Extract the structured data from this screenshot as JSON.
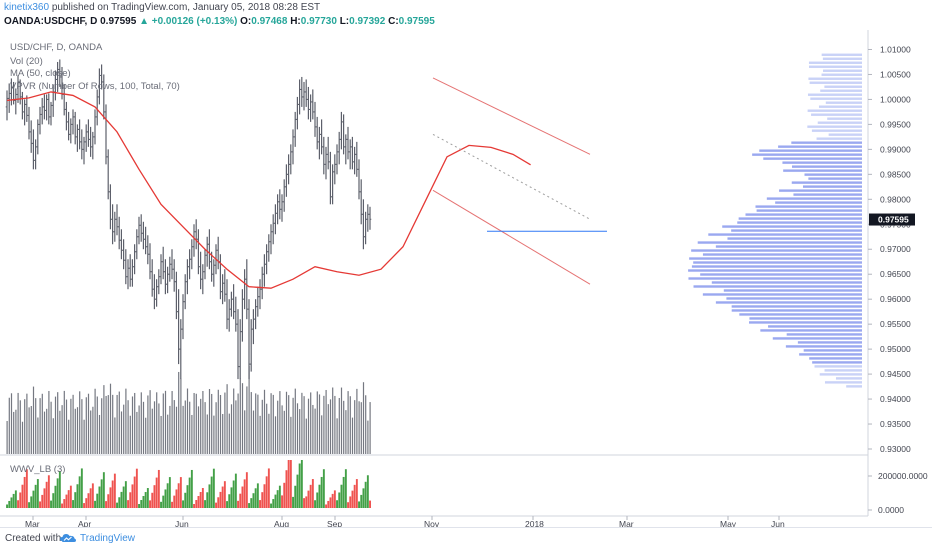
{
  "header": {
    "author": "kinetix360",
    "published_text": "published on TradingView.com, January 05, 2018 08:28 EST",
    "symbol": "OANDA:USDCHF, D",
    "last_price": "0.97595",
    "change": "+0.00126 (+0.13%)",
    "open_label": "O:",
    "open": "0.97468",
    "high_label": "H:",
    "high": "0.97730",
    "low_label": "L:",
    "low": "0.97392",
    "close_label": "C:",
    "close": "0.97595"
  },
  "legend": {
    "line1": "USD/CHF, D, OANDA",
    "line2": "Vol (20)",
    "line3": "MA (50, close)",
    "line4": "VPVR (Number Of Rows, 100, Total, 70)"
  },
  "indicator_label": "WWV_LB (3)",
  "footer": {
    "created_with": "Created with",
    "brand": "TradingView"
  },
  "colors": {
    "bar": "#5d606b",
    "ma_line": "#e53935",
    "channel": "#e57373",
    "hline": "#3179f5",
    "vp_up": "#9aa8f0",
    "vp_light": "#c9d2f7",
    "wwv_up": "#43a047",
    "wwv_down": "#ef5350",
    "price_tag": "#131722"
  },
  "chart_data": {
    "type": "ohlc",
    "symbol": "OANDA:USDCHF",
    "timeframe": "D",
    "price_axis_ticks": [
      "1.01000",
      "1.00500",
      "1.00000",
      "0.99500",
      "0.99000",
      "0.98500",
      "0.98000",
      "0.97500",
      "0.97000",
      "0.96500",
      "0.96000",
      "0.95500",
      "0.95000",
      "0.94500",
      "0.94000",
      "0.93500",
      "0.93000"
    ],
    "ylim": [
      0.929,
      1.0135
    ],
    "current_price_label": "0.97595",
    "indicator_axis_ticks": [
      "200000.0000",
      "0.0000"
    ],
    "x_axis_labels": [
      "Mar",
      "Apr",
      "Jun",
      "Aug",
      "Sep",
      "Nov",
      "2018",
      "Mar",
      "May",
      "Jun"
    ],
    "ma_points": [
      [
        0,
        0.9998
      ],
      [
        10,
        1.0003
      ],
      [
        20,
        1.0015
      ],
      [
        30,
        1.0008
      ],
      [
        40,
        0.9985
      ],
      [
        50,
        0.9935
      ],
      [
        60,
        0.986
      ],
      [
        70,
        0.979
      ],
      [
        80,
        0.9745
      ],
      [
        90,
        0.97
      ],
      [
        100,
        0.966
      ],
      [
        110,
        0.9625
      ],
      [
        120,
        0.9622
      ],
      [
        130,
        0.964
      ],
      [
        140,
        0.9665
      ],
      [
        150,
        0.9655
      ],
      [
        160,
        0.9648
      ],
      [
        170,
        0.966
      ],
      [
        180,
        0.9705
      ],
      [
        190,
        0.9795
      ],
      [
        200,
        0.9885
      ],
      [
        210,
        0.9908
      ],
      [
        220,
        0.9904
      ],
      [
        230,
        0.989
      ],
      [
        238,
        0.9869
      ]
    ],
    "channel_upper": [
      [
        1.0043,
        1.0043
      ],
      [
        0.989,
        0.989
      ]
    ],
    "channel_mid": [
      [
        0.993,
        0.993
      ],
      [
        0.976,
        0.976
      ]
    ],
    "channel_lower": [
      [
        0.9818,
        0.9818
      ],
      [
        0.963,
        0.963
      ]
    ],
    "support_line": 0.9736,
    "ohlc": [
      [
        0.9985,
        1.0018,
        0.9958,
        1.0002
      ],
      [
        1.0002,
        1.0032,
        0.9973,
        1.0012
      ],
      [
        1.0012,
        1.0042,
        0.9988,
        1.0024
      ],
      [
        1.0024,
        1.0035,
        0.999,
        0.9998
      ],
      [
        0.9998,
        1.0022,
        0.997,
        1.001
      ],
      [
        1.001,
        1.0048,
        0.9993,
        1.0035
      ],
      [
        1.0035,
        1.004,
        0.999,
        1.0005
      ],
      [
        1.0005,
        1.0015,
        0.996,
        0.9975
      ],
      [
        0.9975,
        1.0,
        0.9948,
        0.999
      ],
      [
        0.999,
        1.0008,
        0.9955,
        0.9968
      ],
      [
        0.9968,
        0.9985,
        0.992,
        0.9935
      ],
      [
        0.9935,
        0.9958,
        0.9893,
        0.9912
      ],
      [
        0.9912,
        0.994,
        0.986,
        0.9878
      ],
      [
        0.9878,
        0.992,
        0.986,
        0.9905
      ],
      [
        0.9905,
        0.996,
        0.989,
        0.995
      ],
      [
        0.995,
        0.9985,
        0.993,
        0.997
      ],
      [
        0.997,
        1.0003,
        0.995,
        0.9985
      ],
      [
        0.9985,
        1.001,
        0.996,
        0.9978
      ],
      [
        0.9978,
        1.001,
        0.9958,
        1.0
      ],
      [
        1.0,
        1.0012,
        0.995,
        0.9965
      ],
      [
        0.9965,
        0.9995,
        0.9948,
        0.9988
      ],
      [
        0.9988,
        1.003,
        0.9965,
        1.0015
      ],
      [
        1.0015,
        1.0058,
        0.9998,
        1.004
      ],
      [
        1.004,
        1.0075,
        1.0015,
        1.006
      ],
      [
        1.006,
        1.008,
        1.0025,
        1.0045
      ],
      [
        1.0045,
        1.0065,
        1.0,
        1.001
      ],
      [
        1.001,
        1.003,
        0.9968,
        0.998
      ],
      [
        0.998,
        0.9995,
        0.9938,
        0.9955
      ],
      [
        0.9955,
        0.9975,
        0.9918,
        0.993
      ],
      [
        0.993,
        0.9962,
        0.9912,
        0.995
      ],
      [
        0.995,
        0.998,
        0.993,
        0.9965
      ],
      [
        0.9965,
        0.9975,
        0.991,
        0.9925
      ],
      [
        0.9925,
        0.995,
        0.9895,
        0.994
      ],
      [
        0.994,
        0.996,
        0.99,
        0.9915
      ],
      [
        0.9915,
        0.994,
        0.988,
        0.99
      ],
      [
        0.99,
        0.9925,
        0.987,
        0.9915
      ],
      [
        0.9915,
        0.995,
        0.9895,
        0.9935
      ],
      [
        0.9935,
        0.996,
        0.9905,
        0.992
      ],
      [
        0.992,
        0.9945,
        0.9885,
        0.9905
      ],
      [
        0.9905,
        0.9935,
        0.988,
        0.9925
      ],
      [
        0.9925,
        0.998,
        0.991,
        0.9965
      ],
      [
        0.9965,
        1.002,
        0.9948,
        1.0005
      ],
      [
        1.0005,
        1.0062,
        0.999,
        1.0048
      ],
      [
        1.0048,
        1.007,
        1.002,
        1.0035
      ],
      [
        1.0035,
        1.005,
        0.996,
        0.9975
      ],
      [
        0.9975,
        0.999,
        0.987,
        0.9885
      ],
      [
        0.9885,
        0.99,
        0.98,
        0.9815
      ],
      [
        0.9815,
        0.983,
        0.974,
        0.976
      ],
      [
        0.976,
        0.979,
        0.971,
        0.9735
      ],
      [
        0.9735,
        0.9775,
        0.9715,
        0.976
      ],
      [
        0.976,
        0.979,
        0.9728,
        0.9745
      ],
      [
        0.9745,
        0.9765,
        0.97,
        0.9718
      ],
      [
        0.9718,
        0.974,
        0.968,
        0.9698
      ],
      [
        0.9698,
        0.972,
        0.966,
        0.9678
      ],
      [
        0.9678,
        0.97,
        0.963,
        0.9645
      ],
      [
        0.9645,
        0.968,
        0.962,
        0.9662
      ],
      [
        0.9662,
        0.969,
        0.9625,
        0.964
      ],
      [
        0.964,
        0.968,
        0.9625,
        0.9665
      ],
      [
        0.9665,
        0.971,
        0.965,
        0.9695
      ],
      [
        0.9695,
        0.974,
        0.968,
        0.9725
      ],
      [
        0.9725,
        0.9765,
        0.971,
        0.9748
      ],
      [
        0.9748,
        0.977,
        0.9715,
        0.9732
      ],
      [
        0.9732,
        0.9755,
        0.97,
        0.972
      ],
      [
        0.972,
        0.9745,
        0.969,
        0.9705
      ],
      [
        0.9705,
        0.9728,
        0.967,
        0.969
      ],
      [
        0.969,
        0.9712,
        0.964,
        0.9655
      ],
      [
        0.9655,
        0.968,
        0.9605,
        0.962
      ],
      [
        0.962,
        0.965,
        0.958,
        0.96
      ],
      [
        0.96,
        0.964,
        0.9585,
        0.9625
      ],
      [
        0.9625,
        0.966,
        0.961,
        0.9645
      ],
      [
        0.9645,
        0.969,
        0.963,
        0.9675
      ],
      [
        0.9675,
        0.9705,
        0.964,
        0.9655
      ],
      [
        0.9655,
        0.968,
        0.961,
        0.963
      ],
      [
        0.963,
        0.9665,
        0.9612,
        0.965
      ],
      [
        0.965,
        0.9685,
        0.9635,
        0.967
      ],
      [
        0.967,
        0.97,
        0.964,
        0.966
      ],
      [
        0.966,
        0.968,
        0.9615,
        0.9635
      ],
      [
        0.9635,
        0.9655,
        0.956,
        0.9575
      ],
      [
        0.9575,
        0.962,
        0.947,
        0.95
      ],
      [
        0.95,
        0.956,
        0.944,
        0.954
      ],
      [
        0.954,
        0.961,
        0.952,
        0.9595
      ],
      [
        0.9595,
        0.965,
        0.958,
        0.9635
      ],
      [
        0.9635,
        0.968,
        0.961,
        0.9665
      ],
      [
        0.9665,
        0.97,
        0.964,
        0.968
      ],
      [
        0.968,
        0.972,
        0.966,
        0.9705
      ],
      [
        0.9705,
        0.975,
        0.9685,
        0.9735
      ],
      [
        0.9735,
        0.976,
        0.97,
        0.972
      ],
      [
        0.972,
        0.974,
        0.965,
        0.9665
      ],
      [
        0.9665,
        0.9695,
        0.962,
        0.964
      ],
      [
        0.964,
        0.967,
        0.961,
        0.9655
      ],
      [
        0.9655,
        0.97,
        0.964,
        0.9688
      ],
      [
        0.9688,
        0.9725,
        0.9665,
        0.971
      ],
      [
        0.971,
        0.974,
        0.966,
        0.9675
      ],
      [
        0.9675,
        0.9695,
        0.9635,
        0.965
      ],
      [
        0.965,
        0.968,
        0.9625,
        0.9668
      ],
      [
        0.9668,
        0.971,
        0.965,
        0.9698
      ],
      [
        0.9698,
        0.9725,
        0.966,
        0.9675
      ],
      [
        0.9675,
        0.969,
        0.96,
        0.9615
      ],
      [
        0.9615,
        0.965,
        0.959,
        0.9632
      ],
      [
        0.9632,
        0.966,
        0.9595,
        0.961
      ],
      [
        0.961,
        0.964,
        0.954,
        0.956
      ],
      [
        0.956,
        0.96,
        0.9535,
        0.958
      ],
      [
        0.958,
        0.9615,
        0.9565,
        0.96
      ],
      [
        0.96,
        0.963,
        0.956,
        0.9575
      ],
      [
        0.9575,
        0.9605,
        0.9535,
        0.955
      ],
      [
        0.955,
        0.958,
        0.944,
        0.9465
      ],
      [
        0.9465,
        0.956,
        0.944,
        0.9535
      ],
      [
        0.9535,
        0.962,
        0.9515,
        0.96
      ],
      [
        0.96,
        0.966,
        0.958,
        0.964
      ],
      [
        0.964,
        0.968,
        0.956,
        0.958
      ],
      [
        0.958,
        0.96,
        0.944,
        0.947
      ],
      [
        0.947,
        0.956,
        0.9455,
        0.954
      ],
      [
        0.954,
        0.958,
        0.951,
        0.956
      ],
      [
        0.956,
        0.96,
        0.954,
        0.9585
      ],
      [
        0.9585,
        0.9625,
        0.9565,
        0.9605
      ],
      [
        0.9605,
        0.964,
        0.958,
        0.962
      ],
      [
        0.962,
        0.9665,
        0.96,
        0.965
      ],
      [
        0.965,
        0.969,
        0.9625,
        0.967
      ],
      [
        0.967,
        0.971,
        0.965,
        0.9695
      ],
      [
        0.9695,
        0.973,
        0.9675,
        0.9715
      ],
      [
        0.9715,
        0.975,
        0.969,
        0.9735
      ],
      [
        0.9735,
        0.977,
        0.971,
        0.9752
      ],
      [
        0.9752,
        0.979,
        0.973,
        0.9772
      ],
      [
        0.9772,
        0.981,
        0.975,
        0.9795
      ],
      [
        0.9795,
        0.982,
        0.976,
        0.978
      ],
      [
        0.978,
        0.981,
        0.9755,
        0.9795
      ],
      [
        0.9795,
        0.984,
        0.9775,
        0.9825
      ],
      [
        0.9825,
        0.987,
        0.9805,
        0.985
      ],
      [
        0.985,
        0.989,
        0.983,
        0.987
      ],
      [
        0.987,
        0.991,
        0.985,
        0.9895
      ],
      [
        0.9895,
        0.994,
        0.987,
        0.9925
      ],
      [
        0.9925,
        0.9975,
        0.9905,
        0.996
      ],
      [
        0.996,
        1.0005,
        0.994,
        0.999
      ],
      [
        0.999,
        1.004,
        0.997,
        1.002
      ],
      [
        1.002,
        1.0045,
        0.9985,
        1.0005
      ],
      [
        1.0005,
        1.0035,
        0.9978,
        1.0015
      ],
      [
        1.0015,
        1.004,
        0.9985,
        1.0
      ],
      [
        1.0,
        1.0025,
        0.996,
        0.998
      ],
      [
        0.998,
        1.001,
        0.9955,
        0.9995
      ],
      [
        0.9995,
        1.002,
        0.996,
        0.9975
      ],
      [
        0.9975,
        0.9995,
        0.9925,
        0.9945
      ],
      [
        0.9945,
        0.9965,
        0.99,
        0.9915
      ],
      [
        0.9915,
        0.9945,
        0.988,
        0.993
      ],
      [
        0.993,
        0.996,
        0.989,
        0.9905
      ],
      [
        0.9905,
        0.9925,
        0.985,
        0.987
      ],
      [
        0.987,
        0.9905,
        0.984,
        0.989
      ],
      [
        0.989,
        0.9925,
        0.986,
        0.9875
      ],
      [
        0.9875,
        0.9895,
        0.979,
        0.9805
      ],
      [
        0.9805,
        0.987,
        0.979,
        0.9855
      ],
      [
        0.9855,
        0.989,
        0.983,
        0.987
      ],
      [
        0.987,
        0.991,
        0.985,
        0.9895
      ],
      [
        0.9895,
        0.9935,
        0.987,
        0.992
      ],
      [
        0.992,
        0.9975,
        0.99,
        0.9955
      ],
      [
        0.9955,
        0.997,
        0.989,
        0.9905
      ],
      [
        0.9905,
        0.993,
        0.987,
        0.992
      ],
      [
        0.992,
        0.9945,
        0.988,
        0.9895
      ],
      [
        0.9895,
        0.992,
        0.986,
        0.9905
      ],
      [
        0.9905,
        0.9925,
        0.986,
        0.9875
      ],
      [
        0.9875,
        0.9905,
        0.985,
        0.989
      ],
      [
        0.989,
        0.9915,
        0.9845,
        0.986
      ],
      [
        0.986,
        0.988,
        0.98,
        0.9815
      ],
      [
        0.9815,
        0.984,
        0.975,
        0.977
      ],
      [
        0.977,
        0.98,
        0.97,
        0.9725
      ],
      [
        0.9725,
        0.9775,
        0.971,
        0.976
      ],
      [
        0.976,
        0.979,
        0.9735,
        0.977
      ],
      [
        0.977,
        0.9785,
        0.9739,
        0.976
      ]
    ]
  }
}
